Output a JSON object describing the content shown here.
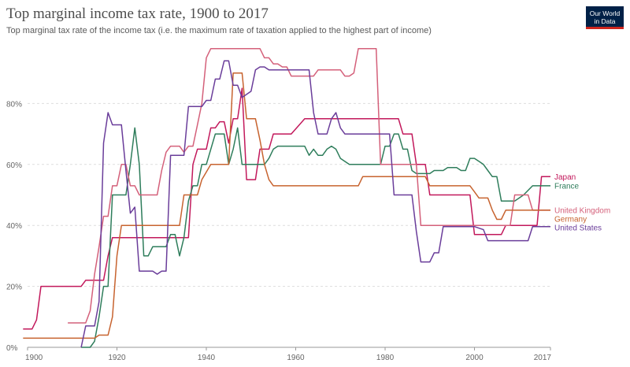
{
  "header": {
    "title": "Top marginal income tax rate, 1900 to 2017",
    "subtitle": "Top marginal tax rate of the income tax (i.e. the maximum rate of taxation applied to the highest part of income)"
  },
  "logo": {
    "line1": "Our World",
    "line2": "in Data",
    "bg_color": "#002147",
    "accent_color": "#ce261e"
  },
  "chart_data": {
    "type": "line",
    "title": "Top marginal income tax rate, 1900 to 2017",
    "subtitle": "Top marginal tax rate of the income tax (i.e. the maximum rate of taxation applied to the highest part of income)",
    "xlabel": "",
    "ylabel": "",
    "xlim": [
      1900,
      2017
    ],
    "ylim": [
      0,
      100
    ],
    "x_ticks": [
      1900,
      1920,
      1940,
      1960,
      1980,
      2000,
      2017
    ],
    "y_ticks": [
      0,
      20,
      40,
      60,
      80
    ],
    "y_tick_labels": [
      "0%",
      "20%",
      "40%",
      "60%",
      "80%"
    ],
    "grid": true,
    "legend": "right, labels at line ends",
    "series": [
      {
        "name": "Japan",
        "color": "#c2185b",
        "points": [
          [
            1899,
            6
          ],
          [
            1901,
            6
          ],
          [
            1902,
            9
          ],
          [
            1903,
            20
          ],
          [
            1909,
            20
          ],
          [
            1910,
            20
          ],
          [
            1912,
            20
          ],
          [
            1913,
            22
          ],
          [
            1917,
            22
          ],
          [
            1918,
            30
          ],
          [
            1919,
            36
          ],
          [
            1920,
            36
          ],
          [
            1934,
            36
          ],
          [
            1935,
            36
          ],
          [
            1936,
            36
          ],
          [
            1937,
            60
          ],
          [
            1938,
            65
          ],
          [
            1939,
            65
          ],
          [
            1940,
            65
          ],
          [
            1941,
            72
          ],
          [
            1942,
            72
          ],
          [
            1943,
            74
          ],
          [
            1944,
            74
          ],
          [
            1945,
            67
          ],
          [
            1946,
            75
          ],
          [
            1947,
            75
          ],
          [
            1948,
            85
          ],
          [
            1949,
            55
          ],
          [
            1950,
            55
          ],
          [
            1951,
            55
          ],
          [
            1952,
            65
          ],
          [
            1953,
            65
          ],
          [
            1954,
            65
          ],
          [
            1955,
            70
          ],
          [
            1957,
            70
          ],
          [
            1958,
            70
          ],
          [
            1959,
            70
          ],
          [
            1962,
            75
          ],
          [
            1974,
            75
          ],
          [
            1983,
            75
          ],
          [
            1984,
            70
          ],
          [
            1986,
            70
          ],
          [
            1987,
            60
          ],
          [
            1989,
            60
          ],
          [
            1990,
            50
          ],
          [
            1994,
            50
          ],
          [
            1999,
            50
          ],
          [
            2000,
            37
          ],
          [
            2006,
            37
          ],
          [
            2007,
            40
          ],
          [
            2014,
            40
          ],
          [
            2015,
            56
          ],
          [
            2017,
            56
          ]
        ]
      },
      {
        "name": "France",
        "color": "#2e7d5b",
        "points": [
          [
            1912,
            0
          ],
          [
            1913,
            0
          ],
          [
            1914,
            0
          ],
          [
            1915,
            2
          ],
          [
            1916,
            10
          ],
          [
            1917,
            20
          ],
          [
            1918,
            20
          ],
          [
            1919,
            50
          ],
          [
            1922,
            50
          ],
          [
            1923,
            60
          ],
          [
            1924,
            72
          ],
          [
            1925,
            60
          ],
          [
            1926,
            30
          ],
          [
            1927,
            30
          ],
          [
            1928,
            33
          ],
          [
            1929,
            33
          ],
          [
            1930,
            33
          ],
          [
            1931,
            33
          ],
          [
            1932,
            37
          ],
          [
            1933,
            37
          ],
          [
            1934,
            30
          ],
          [
            1935,
            36
          ],
          [
            1936,
            48
          ],
          [
            1937,
            53
          ],
          [
            1938,
            53
          ],
          [
            1939,
            60
          ],
          [
            1940,
            60
          ],
          [
            1941,
            65
          ],
          [
            1942,
            70
          ],
          [
            1944,
            70
          ],
          [
            1945,
            60
          ],
          [
            1946,
            65
          ],
          [
            1947,
            72
          ],
          [
            1948,
            60
          ],
          [
            1950,
            60
          ],
          [
            1952,
            60
          ],
          [
            1953,
            60
          ],
          [
            1954,
            62
          ],
          [
            1955,
            65
          ],
          [
            1956,
            66
          ],
          [
            1957,
            66
          ],
          [
            1960,
            66
          ],
          [
            1962,
            66
          ],
          [
            1963,
            63
          ],
          [
            1964,
            65
          ],
          [
            1965,
            63
          ],
          [
            1966,
            63
          ],
          [
            1967,
            65
          ],
          [
            1968,
            66
          ],
          [
            1969,
            65
          ],
          [
            1970,
            62
          ],
          [
            1972,
            60
          ],
          [
            1975,
            60
          ],
          [
            1979,
            60
          ],
          [
            1980,
            66
          ],
          [
            1981,
            66
          ],
          [
            1982,
            70
          ],
          [
            1983,
            70
          ],
          [
            1984,
            65
          ],
          [
            1985,
            65
          ],
          [
            1986,
            58
          ],
          [
            1987,
            57
          ],
          [
            1990,
            57
          ],
          [
            1991,
            58
          ],
          [
            1993,
            58
          ],
          [
            1994,
            59
          ],
          [
            1996,
            59
          ],
          [
            1997,
            58
          ],
          [
            1998,
            58
          ],
          [
            1999,
            62
          ],
          [
            2000,
            62
          ],
          [
            2001,
            61
          ],
          [
            2002,
            60
          ],
          [
            2003,
            58
          ],
          [
            2004,
            56
          ],
          [
            2005,
            56
          ],
          [
            2006,
            48
          ],
          [
            2009,
            48
          ],
          [
            2010,
            49
          ],
          [
            2011,
            50
          ],
          [
            2013,
            53
          ],
          [
            2015,
            53
          ],
          [
            2016,
            53
          ],
          [
            2017,
            53
          ]
        ]
      },
      {
        "name": "United Kingdom",
        "color": "#d4607a",
        "points": [
          [
            1909,
            8
          ],
          [
            1912,
            8
          ],
          [
            1913,
            8
          ],
          [
            1914,
            12
          ],
          [
            1915,
            24
          ],
          [
            1916,
            33
          ],
          [
            1917,
            43
          ],
          [
            1918,
            43
          ],
          [
            1919,
            53
          ],
          [
            1920,
            53
          ],
          [
            1921,
            60
          ],
          [
            1922,
            60
          ],
          [
            1923,
            53
          ],
          [
            1924,
            53
          ],
          [
            1925,
            50
          ],
          [
            1926,
            50
          ],
          [
            1927,
            50
          ],
          [
            1929,
            50
          ],
          [
            1930,
            58
          ],
          [
            1931,
            64
          ],
          [
            1932,
            66
          ],
          [
            1933,
            66
          ],
          [
            1934,
            66
          ],
          [
            1935,
            64
          ],
          [
            1936,
            66
          ],
          [
            1937,
            66
          ],
          [
            1938,
            73
          ],
          [
            1939,
            80
          ],
          [
            1940,
            95
          ],
          [
            1941,
            98
          ],
          [
            1952,
            98
          ],
          [
            1953,
            95
          ],
          [
            1954,
            95
          ],
          [
            1955,
            93
          ],
          [
            1956,
            93
          ],
          [
            1957,
            92
          ],
          [
            1958,
            92
          ],
          [
            1959,
            89
          ],
          [
            1964,
            89
          ],
          [
            1965,
            91
          ],
          [
            1966,
            91
          ],
          [
            1970,
            91
          ],
          [
            1971,
            89
          ],
          [
            1972,
            89
          ],
          [
            1973,
            90
          ],
          [
            1974,
            98
          ],
          [
            1978,
            98
          ],
          [
            1979,
            60
          ],
          [
            1987,
            60
          ],
          [
            1988,
            40
          ],
          [
            1999,
            40
          ],
          [
            2008,
            40
          ],
          [
            2009,
            50
          ],
          [
            2012,
            50
          ],
          [
            2013,
            45
          ],
          [
            2017,
            45
          ]
        ]
      },
      {
        "name": "Germany",
        "color": "#c7632f",
        "points": [
          [
            1899,
            3
          ],
          [
            1915,
            3
          ],
          [
            1916,
            4
          ],
          [
            1917,
            4
          ],
          [
            1918,
            4
          ],
          [
            1919,
            10
          ],
          [
            1920,
            30
          ],
          [
            1921,
            40
          ],
          [
            1924,
            40
          ],
          [
            1925,
            40
          ],
          [
            1933,
            40
          ],
          [
            1934,
            40
          ],
          [
            1935,
            50
          ],
          [
            1938,
            50
          ],
          [
            1939,
            55
          ],
          [
            1941,
            60
          ],
          [
            1944,
            60
          ],
          [
            1945,
            60
          ],
          [
            1946,
            90
          ],
          [
            1947,
            90
          ],
          [
            1948,
            90
          ],
          [
            1949,
            75
          ],
          [
            1950,
            75
          ],
          [
            1951,
            75
          ],
          [
            1952,
            68
          ],
          [
            1953,
            60
          ],
          [
            1954,
            55
          ],
          [
            1955,
            53
          ],
          [
            1959,
            53
          ],
          [
            1960,
            53
          ],
          [
            1974,
            53
          ],
          [
            1975,
            56
          ],
          [
            1988,
            56
          ],
          [
            1989,
            56
          ],
          [
            1990,
            53
          ],
          [
            1999,
            53
          ],
          [
            2000,
            51
          ],
          [
            2001,
            49
          ],
          [
            2003,
            49
          ],
          [
            2004,
            45
          ],
          [
            2005,
            42
          ],
          [
            2006,
            42
          ],
          [
            2007,
            45
          ],
          [
            2017,
            45
          ]
        ]
      },
      {
        "name": "United States",
        "color": "#6a3d9a",
        "points": [
          [
            1912,
            0
          ],
          [
            1913,
            7
          ],
          [
            1914,
            7
          ],
          [
            1915,
            7
          ],
          [
            1916,
            15
          ],
          [
            1917,
            67
          ],
          [
            1918,
            77
          ],
          [
            1919,
            73
          ],
          [
            1920,
            73
          ],
          [
            1921,
            73
          ],
          [
            1922,
            58
          ],
          [
            1923,
            44
          ],
          [
            1924,
            46
          ],
          [
            1925,
            25
          ],
          [
            1926,
            25
          ],
          [
            1927,
            25
          ],
          [
            1928,
            25
          ],
          [
            1929,
            24
          ],
          [
            1930,
            25
          ],
          [
            1931,
            25
          ],
          [
            1932,
            63
          ],
          [
            1935,
            63
          ],
          [
            1936,
            79
          ],
          [
            1939,
            79
          ],
          [
            1940,
            81
          ],
          [
            1941,
            81
          ],
          [
            1942,
            88
          ],
          [
            1943,
            88
          ],
          [
            1944,
            94
          ],
          [
            1945,
            94
          ],
          [
            1946,
            86
          ],
          [
            1947,
            86
          ],
          [
            1948,
            82
          ],
          [
            1950,
            84
          ],
          [
            1951,
            91
          ],
          [
            1952,
            92
          ],
          [
            1953,
            92
          ],
          [
            1954,
            91
          ],
          [
            1963,
            91
          ],
          [
            1964,
            77
          ],
          [
            1965,
            70
          ],
          [
            1967,
            70
          ],
          [
            1968,
            75
          ],
          [
            1969,
            77
          ],
          [
            1970,
            72
          ],
          [
            1971,
            70
          ],
          [
            1981,
            70
          ],
          [
            1982,
            50
          ],
          [
            1986,
            50
          ],
          [
            1987,
            38
          ],
          [
            1988,
            28
          ],
          [
            1990,
            28
          ],
          [
            1991,
            31
          ],
          [
            1992,
            31
          ],
          [
            1993,
            39.6
          ],
          [
            2000,
            39.6
          ],
          [
            2001,
            39.1
          ],
          [
            2002,
            38.6
          ],
          [
            2003,
            35
          ],
          [
            2012,
            35
          ],
          [
            2013,
            39.6
          ],
          [
            2017,
            39.6
          ]
        ]
      }
    ],
    "legend_labels": [
      {
        "name": "Japan",
        "color": "#c2185b"
      },
      {
        "name": "France",
        "color": "#2e7d5b"
      },
      {
        "name": "United Kingdom",
        "color": "#d4607a"
      },
      {
        "name": "Germany",
        "color": "#c7632f"
      },
      {
        "name": "United States",
        "color": "#6a3d9a"
      }
    ]
  }
}
